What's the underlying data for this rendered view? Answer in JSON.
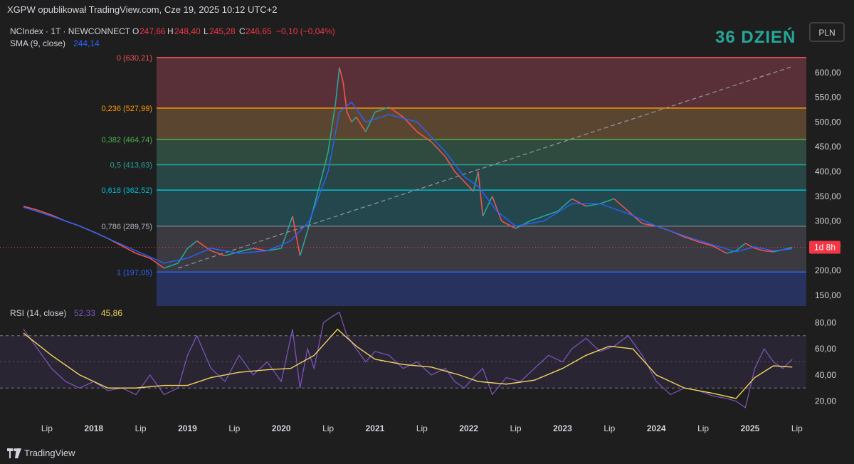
{
  "header": {
    "published_by": "XGPW opublikował TradingView.com, Cze 19, 2025 10:12 UTC+2"
  },
  "footer": {
    "brand": "TradingView"
  },
  "legend": {
    "symbol": "NCIndex · 1T · NEWCONNECT",
    "open_label": "O",
    "open": "247,66",
    "high_label": "H",
    "high": "248,40",
    "low_label": "L",
    "low": "245,28",
    "close_label": "C",
    "close": "246,65",
    "change": "−0,10 (−0,04%)",
    "sma_label": "SMA (9, close)",
    "sma_value": "244,14",
    "rsi_label": "RSI (14, close)",
    "rsi_value": "52,33",
    "rsi_ma_value": "45,86"
  },
  "overlay": {
    "day_label": "36 DZIEŃ",
    "currency": "PLN",
    "countdown": "1d 8h"
  },
  "colors": {
    "background": "#1e1e1e",
    "up": "#26a69a",
    "down": "#ef5350",
    "sma": "#2962ff",
    "rsi": "#7e57c2",
    "rsi_ma": "#f2d45c",
    "day_label": "#26a69a",
    "price_tag": "#f23645"
  },
  "chart_data": [
    {
      "type": "line",
      "title": "NCIndex · 1T · NEWCONNECT",
      "price_axis": {
        "ticks": [
          "600,00",
          "550,00",
          "500,00",
          "450,00",
          "400,00",
          "350,00",
          "300,00",
          "250,00",
          "200,00",
          "150,00"
        ],
        "ylim": [
          140,
          650
        ]
      },
      "time_axis": {
        "labels": [
          "Lip",
          "2018",
          "Lip",
          "2019",
          "Lip",
          "2020",
          "Lip",
          "2021",
          "Lip",
          "2022",
          "Lip",
          "2023",
          "Lip",
          "2024",
          "Lip",
          "2025",
          "Lip"
        ]
      },
      "fibonacci": [
        {
          "level": "0",
          "price": "630,21"
        },
        {
          "level": "0,236",
          "price": "527,99"
        },
        {
          "level": "0,382",
          "price": "464,74"
        },
        {
          "level": "0,5",
          "price": "413,63"
        },
        {
          "level": "0,618",
          "price": "362,52"
        },
        {
          "level": "0,786",
          "price": "289,75"
        },
        {
          "level": "1",
          "price": "197,05"
        }
      ],
      "series": [
        {
          "name": "NCIndex",
          "x": [
            2017.25,
            2017.4,
            2017.55,
            2017.7,
            2017.85,
            2018.0,
            2018.15,
            2018.3,
            2018.45,
            2018.6,
            2018.75,
            2018.9,
            2019.0,
            2019.1,
            2019.25,
            2019.4,
            2019.55,
            2019.7,
            2019.85,
            2020.0,
            2020.12,
            2020.2,
            2020.28,
            2020.35,
            2020.42,
            2020.5,
            2020.58,
            2020.62,
            2020.66,
            2020.7,
            2020.75,
            2020.8,
            2020.9,
            2021.0,
            2021.15,
            2021.3,
            2021.45,
            2021.6,
            2021.75,
            2021.85,
            2021.95,
            2022.05,
            2022.1,
            2022.15,
            2022.25,
            2022.35,
            2022.5,
            2022.65,
            2022.8,
            2022.95,
            2023.1,
            2023.25,
            2023.4,
            2023.55,
            2023.7,
            2023.85,
            2024.0,
            2024.15,
            2024.3,
            2024.45,
            2024.6,
            2024.75,
            2024.85,
            2024.95,
            2025.05,
            2025.15,
            2025.25,
            2025.35,
            2025.45
          ],
          "values": [
            330,
            322,
            312,
            300,
            290,
            278,
            265,
            250,
            235,
            225,
            205,
            215,
            245,
            260,
            240,
            230,
            238,
            245,
            240,
            245,
            310,
            230,
            280,
            330,
            380,
            440,
            540,
            610,
            580,
            520,
            500,
            510,
            480,
            520,
            530,
            510,
            480,
            460,
            430,
            400,
            380,
            360,
            400,
            310,
            350,
            300,
            285,
            300,
            310,
            320,
            345,
            330,
            335,
            345,
            320,
            295,
            290,
            280,
            268,
            258,
            250,
            235,
            240,
            255,
            245,
            240,
            238,
            242,
            247
          ]
        },
        {
          "name": "SMA (9, close)",
          "x": [
            2017.25,
            2017.55,
            2017.85,
            2018.15,
            2018.45,
            2018.75,
            2019.0,
            2019.25,
            2019.55,
            2019.85,
            2020.1,
            2020.3,
            2020.5,
            2020.62,
            2020.75,
            2020.9,
            2021.15,
            2021.45,
            2021.75,
            2021.95,
            2022.1,
            2022.3,
            2022.5,
            2022.8,
            2023.1,
            2023.4,
            2023.7,
            2024.0,
            2024.3,
            2024.6,
            2024.85,
            2025.05,
            2025.25,
            2025.45
          ],
          "values": [
            328,
            310,
            290,
            265,
            240,
            215,
            225,
            245,
            235,
            240,
            260,
            300,
            400,
            520,
            540,
            500,
            515,
            500,
            440,
            390,
            370,
            320,
            290,
            300,
            335,
            335,
            315,
            290,
            270,
            252,
            238,
            248,
            240,
            244
          ]
        }
      ]
    },
    {
      "type": "line",
      "title": "RSI (14, close)",
      "ylim": [
        10,
        90
      ],
      "y_ticks": [
        "80,00",
        "60,00",
        "40,00",
        "20,00"
      ],
      "bands": [
        70,
        30
      ],
      "series": [
        {
          "name": "RSI",
          "x": [
            2017.25,
            2017.4,
            2017.55,
            2017.7,
            2017.85,
            2018.0,
            2018.15,
            2018.3,
            2018.45,
            2018.6,
            2018.75,
            2018.9,
            2019.0,
            2019.1,
            2019.25,
            2019.4,
            2019.55,
            2019.7,
            2019.85,
            2020.0,
            2020.12,
            2020.2,
            2020.28,
            2020.35,
            2020.45,
            2020.55,
            2020.62,
            2020.7,
            2020.8,
            2020.9,
            2021.0,
            2021.15,
            2021.3,
            2021.45,
            2021.6,
            2021.75,
            2021.85,
            2021.95,
            2022.05,
            2022.15,
            2022.25,
            2022.4,
            2022.55,
            2022.7,
            2022.85,
            2023.0,
            2023.1,
            2023.25,
            2023.4,
            2023.55,
            2023.7,
            2023.85,
            2024.0,
            2024.15,
            2024.3,
            2024.45,
            2024.6,
            2024.75,
            2024.85,
            2024.95,
            2025.05,
            2025.15,
            2025.25,
            2025.35,
            2025.45
          ],
          "values": [
            75,
            60,
            45,
            35,
            30,
            35,
            28,
            30,
            25,
            40,
            25,
            30,
            55,
            70,
            45,
            35,
            55,
            40,
            50,
            35,
            75,
            30,
            60,
            45,
            80,
            85,
            88,
            70,
            60,
            50,
            58,
            55,
            45,
            50,
            40,
            45,
            35,
            30,
            38,
            45,
            25,
            38,
            35,
            45,
            55,
            50,
            60,
            68,
            58,
            62,
            70,
            55,
            35,
            25,
            30,
            28,
            24,
            22,
            20,
            15,
            45,
            60,
            50,
            45,
            52
          ]
        },
        {
          "name": "RSI MA",
          "x": [
            2017.25,
            2017.55,
            2017.85,
            2018.15,
            2018.45,
            2018.75,
            2019.0,
            2019.25,
            2019.55,
            2019.85,
            2020.1,
            2020.35,
            2020.6,
            2020.8,
            2021.0,
            2021.3,
            2021.6,
            2021.9,
            2022.1,
            2022.4,
            2022.7,
            2023.0,
            2023.25,
            2023.5,
            2023.75,
            2024.0,
            2024.3,
            2024.6,
            2024.85,
            2025.05,
            2025.25,
            2025.45
          ],
          "values": [
            72,
            55,
            40,
            30,
            30,
            32,
            32,
            38,
            42,
            44,
            45,
            55,
            75,
            62,
            52,
            48,
            46,
            40,
            35,
            33,
            36,
            45,
            55,
            62,
            60,
            40,
            30,
            26,
            22,
            38,
            47,
            46
          ]
        }
      ]
    }
  ]
}
